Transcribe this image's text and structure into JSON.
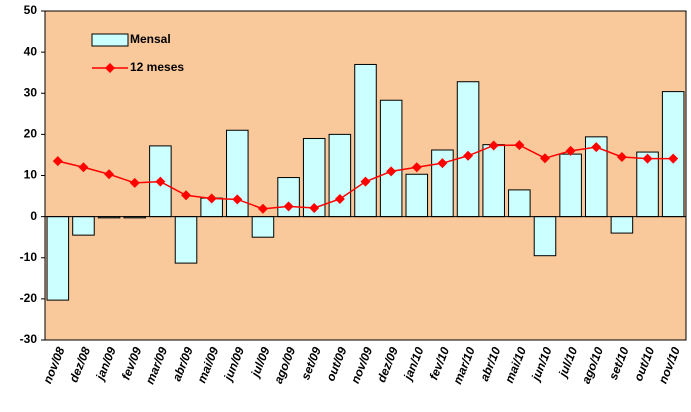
{
  "chart_data": {
    "type": "bar",
    "categories": [
      "nov/08",
      "dez/08",
      "jan/09",
      "fev/09",
      "mar/09",
      "abr/09",
      "mai/09",
      "jun/09",
      "jul/09",
      "ago/09",
      "set/09",
      "out/09",
      "nov/09",
      "dez/09",
      "jan/10",
      "fev/10",
      "mar/10",
      "abr/10",
      "mai/10",
      "jun/10",
      "jul/10",
      "ago/10",
      "set/10",
      "out/10",
      "nov/10"
    ],
    "series": [
      {
        "name": "Mensal",
        "type": "bar",
        "color": "#ccffff",
        "values": [
          -20.3,
          -4.5,
          -0.3,
          -0.3,
          17.2,
          -11.3,
          4.5,
          21,
          -5,
          9.5,
          19,
          20,
          37,
          28.3,
          10.3,
          16.2,
          32.8,
          17.5,
          6.5,
          -9.5,
          15.2,
          19.4,
          -4,
          15.7,
          30.4
        ]
      },
      {
        "name": "12 meses",
        "type": "line",
        "color": "#ff0000",
        "values": [
          13.5,
          12,
          10.3,
          8.2,
          8.5,
          5.2,
          4.4,
          4.2,
          1.9,
          2.5,
          2.1,
          4.3,
          8.5,
          11,
          12,
          13,
          14.8,
          17.3,
          17.4,
          14.2,
          16,
          16.9,
          14.5,
          14.1,
          14.1
        ]
      }
    ],
    "ylim": [
      -30,
      50
    ],
    "yticks": [
      -30,
      -20,
      -10,
      0,
      10,
      20,
      30,
      40,
      50
    ],
    "background": "#f9c89b",
    "legend": "upper-left"
  }
}
